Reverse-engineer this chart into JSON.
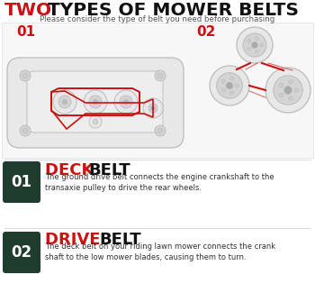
{
  "bg_color": "#ffffff",
  "title_two": "TWO",
  "title_rest": " TYPES OF MOWER BELTS",
  "subtitle": "Please consider the type of belt you need before purchasing",
  "label_01": "01",
  "label_02": "02",
  "section1_title_red": "DECK ",
  "section1_title_black": "BELT",
  "section1_body": "The ground drive belt connects the engine crankshaft to the\ntransaxie pulley to drive the rear wheels.",
  "section2_title_red": "DRIVE ",
  "section2_title_black": "BELT",
  "section2_body": "The deck belt on your riding lawn mower connects the crank\nshaft to the low mower blades, causing them to turn.",
  "red_color": "#cc1111",
  "dark_green": "#1e3d2e",
  "gray_outline": "#c0c0c0",
  "gray_fill": "#e8e8e8",
  "gray_fill2": "#d4d4d4",
  "title_red_color": "#cc1111",
  "diagram_bg": "#f7f7f7"
}
